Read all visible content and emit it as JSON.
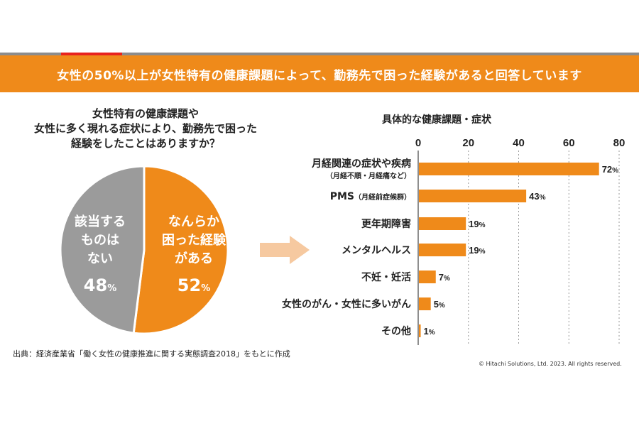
{
  "header": {
    "title": "女性の50%以上が女性特有の健康課題によって、勤務先で困った経験があると回答しています"
  },
  "question": {
    "lines": [
      "女性特有の健康課題や",
      "女性に多く現れる症状により、勤務先で困った",
      "経験をしたことはありますか？"
    ]
  },
  "colors": {
    "banner": "#ef8a1a",
    "accent": "#ef8a1a",
    "pie_gray": "#9b9b9b",
    "arrow": "#f6c9a0",
    "topline_red": "#e8231e",
    "topline_gray": "#8c8c8c"
  },
  "chart_data": [
    {
      "type": "pie",
      "slices": [
        {
          "label_lines": [
            "なんらか",
            "困った経験",
            "がある"
          ],
          "value": 52,
          "value_text": "52",
          "unit": "%",
          "color": "#ef8a1a"
        },
        {
          "label_lines": [
            "該当する",
            "ものは",
            "ない"
          ],
          "value": 48,
          "value_text": "48",
          "unit": "%",
          "color": "#9b9b9b"
        }
      ]
    },
    {
      "type": "bar",
      "orientation": "horizontal",
      "title": "具体的な健康課題・症状",
      "xlim": [
        0,
        80
      ],
      "xticks": [
        "0",
        "20",
        "40",
        "60",
        "80"
      ],
      "grid": true,
      "categories": [
        {
          "label": "月経関連の症状や疾病",
          "sub": "（月経不順・月経痛など）"
        },
        {
          "label": "PMS",
          "sub": "（月経前症候群）"
        },
        {
          "label": "更年期障害",
          "sub": ""
        },
        {
          "label": "メンタルヘルス",
          "sub": ""
        },
        {
          "label": "不妊・妊活",
          "sub": ""
        },
        {
          "label": "女性のがん・女性に多いがん",
          "sub": ""
        },
        {
          "label": "その他",
          "sub": ""
        }
      ],
      "values": [
        72,
        43,
        19,
        19,
        7,
        5,
        1
      ],
      "value_labels": [
        "72",
        "43",
        "19",
        "19",
        "7",
        "5",
        "1"
      ],
      "unit": "%",
      "color": "#ef8a1a"
    }
  ],
  "footer": {
    "source": "出典：経済産業省「働く女性の健康推進に関する実態調査2018」をもとに作成",
    "copyright": "© Hitachi Solutions, Ltd. 2023. All rights reserved."
  }
}
